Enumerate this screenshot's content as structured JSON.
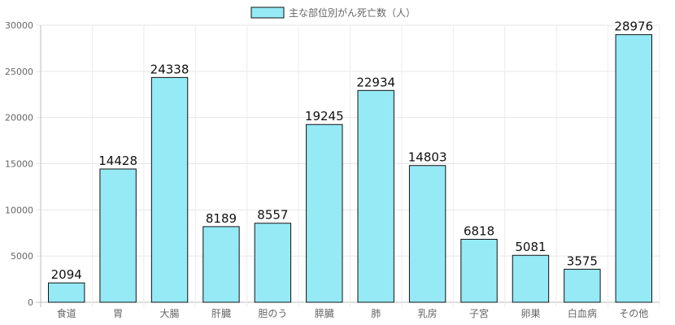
{
  "chart_data": {
    "type": "bar",
    "legend": {
      "label": "主な部位別がん死亡数（人）",
      "color": "#95EAF6",
      "border": "#111111",
      "position": "top"
    },
    "categories": [
      "食道",
      "胃",
      "大腸",
      "肝臓",
      "胆のう",
      "膵臓",
      "肺",
      "乳房",
      "子宮",
      "卵巣",
      "白血病",
      "その他"
    ],
    "series": [
      {
        "name": "主な部位別がん死亡数（人）",
        "values": [
          2094,
          14428,
          24338,
          8189,
          8557,
          19245,
          22934,
          14803,
          6818,
          5081,
          3575,
          28976
        ]
      }
    ],
    "ylim": [
      0,
      30000
    ],
    "yticks": [
      0,
      5000,
      10000,
      15000,
      20000,
      25000,
      30000
    ],
    "grid": true,
    "data_labels": true
  }
}
